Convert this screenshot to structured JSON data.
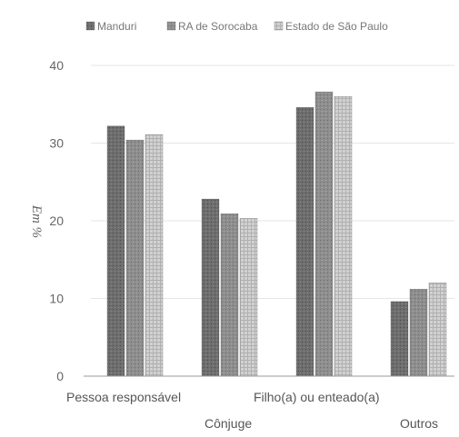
{
  "chart_data": {
    "type": "bar",
    "title": "",
    "ylabel": "Em %",
    "xlabel": "",
    "ylim": [
      0,
      40
    ],
    "yticks": [
      "0",
      "10",
      "20",
      "30",
      "40"
    ],
    "categories": [
      "Pessoa responsável",
      "Cônjuge",
      "Filho(a) ou enteado(a)",
      "Outros"
    ],
    "series": [
      {
        "name": "Manduri",
        "values": [
          32.2,
          22.8,
          34.6,
          9.6
        ],
        "color": "#6e6e6e",
        "pattern": "dark-dotted"
      },
      {
        "name": "RA de Sorocaba",
        "values": [
          30.4,
          20.9,
          36.6,
          11.2
        ],
        "color": "#8c8c8c",
        "pattern": "mid-dotted"
      },
      {
        "name": "Estado de São Paulo",
        "values": [
          31.1,
          20.3,
          36.0,
          12.0
        ],
        "color": "#c8c8c8",
        "pattern": "light-grid"
      }
    ],
    "grid": true,
    "legend_position": "top"
  }
}
